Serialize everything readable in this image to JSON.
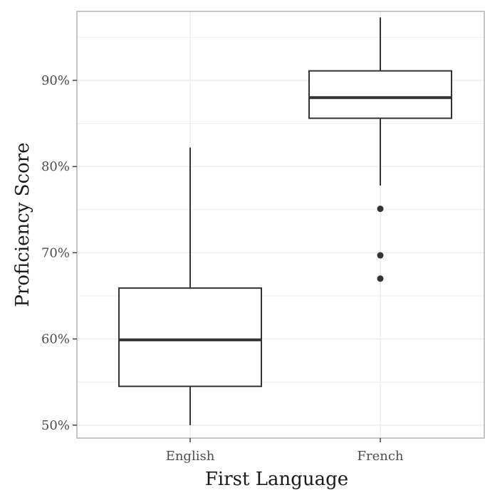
{
  "chart_data": {
    "type": "boxplot",
    "title": "",
    "xlabel": "First Language",
    "ylabel": "Proficiency Score",
    "categories": [
      "English",
      "French"
    ],
    "ylim": [
      0.485,
      0.98
    ],
    "y_ticks": [
      0.5,
      0.6,
      0.7,
      0.8,
      0.9
    ],
    "y_tick_labels": [
      "50%",
      "60%",
      "70%",
      "80%",
      "90%"
    ],
    "y_minor_ticks": [
      0.55,
      0.65,
      0.75,
      0.85,
      0.95
    ],
    "grid": true,
    "boxes": [
      {
        "category": "English",
        "whisker_low": 0.5,
        "q1": 0.545,
        "median": 0.599,
        "q3": 0.659,
        "whisker_high": 0.822,
        "outliers": []
      },
      {
        "category": "French",
        "whisker_low": 0.778,
        "q1": 0.856,
        "median": 0.88,
        "q3": 0.911,
        "whisker_high": 0.973,
        "outliers": [
          0.751,
          0.697,
          0.67
        ]
      }
    ],
    "colors": {
      "box_fill": "#ffffff",
      "box_stroke": "#333333",
      "grid": "#ebebeb",
      "panel_border": "#b3b3b3"
    }
  }
}
